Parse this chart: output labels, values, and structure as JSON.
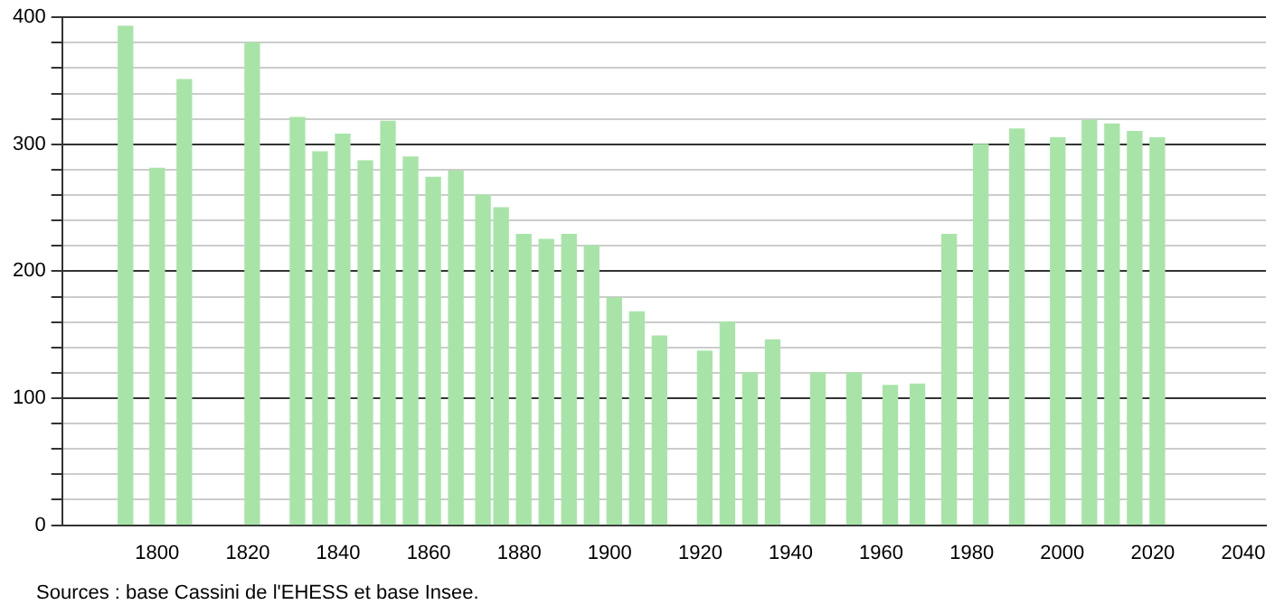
{
  "chart_data": {
    "type": "bar",
    "x": [
      1793,
      1800,
      1806,
      1821,
      1831,
      1836,
      1841,
      1846,
      1851,
      1856,
      1861,
      1866,
      1872,
      1876,
      1881,
      1886,
      1891,
      1896,
      1901,
      1906,
      1911,
      1921,
      1926,
      1931,
      1936,
      1946,
      1954,
      1962,
      1968,
      1975,
      1982,
      1990,
      1999,
      2006,
      2011,
      2016,
      2021
    ],
    "values": [
      393,
      281,
      351,
      380,
      321,
      294,
      308,
      287,
      318,
      290,
      274,
      279,
      260,
      250,
      229,
      225,
      229,
      220,
      179,
      168,
      149,
      137,
      160,
      120,
      146,
      120,
      120,
      110,
      111,
      229,
      300,
      312,
      305,
      319,
      316,
      310,
      305
    ],
    "color": "#a8e4a8",
    "xlim": [
      1779,
      2045
    ],
    "xticks": [
      1800,
      1820,
      1840,
      1860,
      1880,
      1900,
      1920,
      1940,
      1960,
      1980,
      2000,
      2020,
      2040
    ],
    "ylim": [
      0,
      400
    ],
    "yticks": [
      0,
      {
        "value": 20,
        "label": null
      },
      {
        "value": 40,
        "label": null
      },
      {
        "value": 60,
        "label": null
      },
      {
        "value": 80,
        "label": null
      },
      100,
      {
        "value": 120,
        "label": null
      },
      {
        "value": 140,
        "label": null
      },
      {
        "value": 160,
        "label": null
      },
      {
        "value": 180,
        "label": null
      },
      200,
      {
        "value": 220,
        "label": null
      },
      {
        "value": 240,
        "label": null
      },
      {
        "value": 260,
        "label": null
      },
      {
        "value": 280,
        "label": null
      },
      300,
      {
        "value": 320,
        "label": null
      },
      {
        "value": 340,
        "label": null
      },
      {
        "value": 360,
        "label": null
      },
      {
        "value": 380,
        "label": null
      },
      400
    ],
    "grid": "y",
    "annotations": [
      "Sources : base Cassini de l'EHESS et base Insee."
    ]
  }
}
